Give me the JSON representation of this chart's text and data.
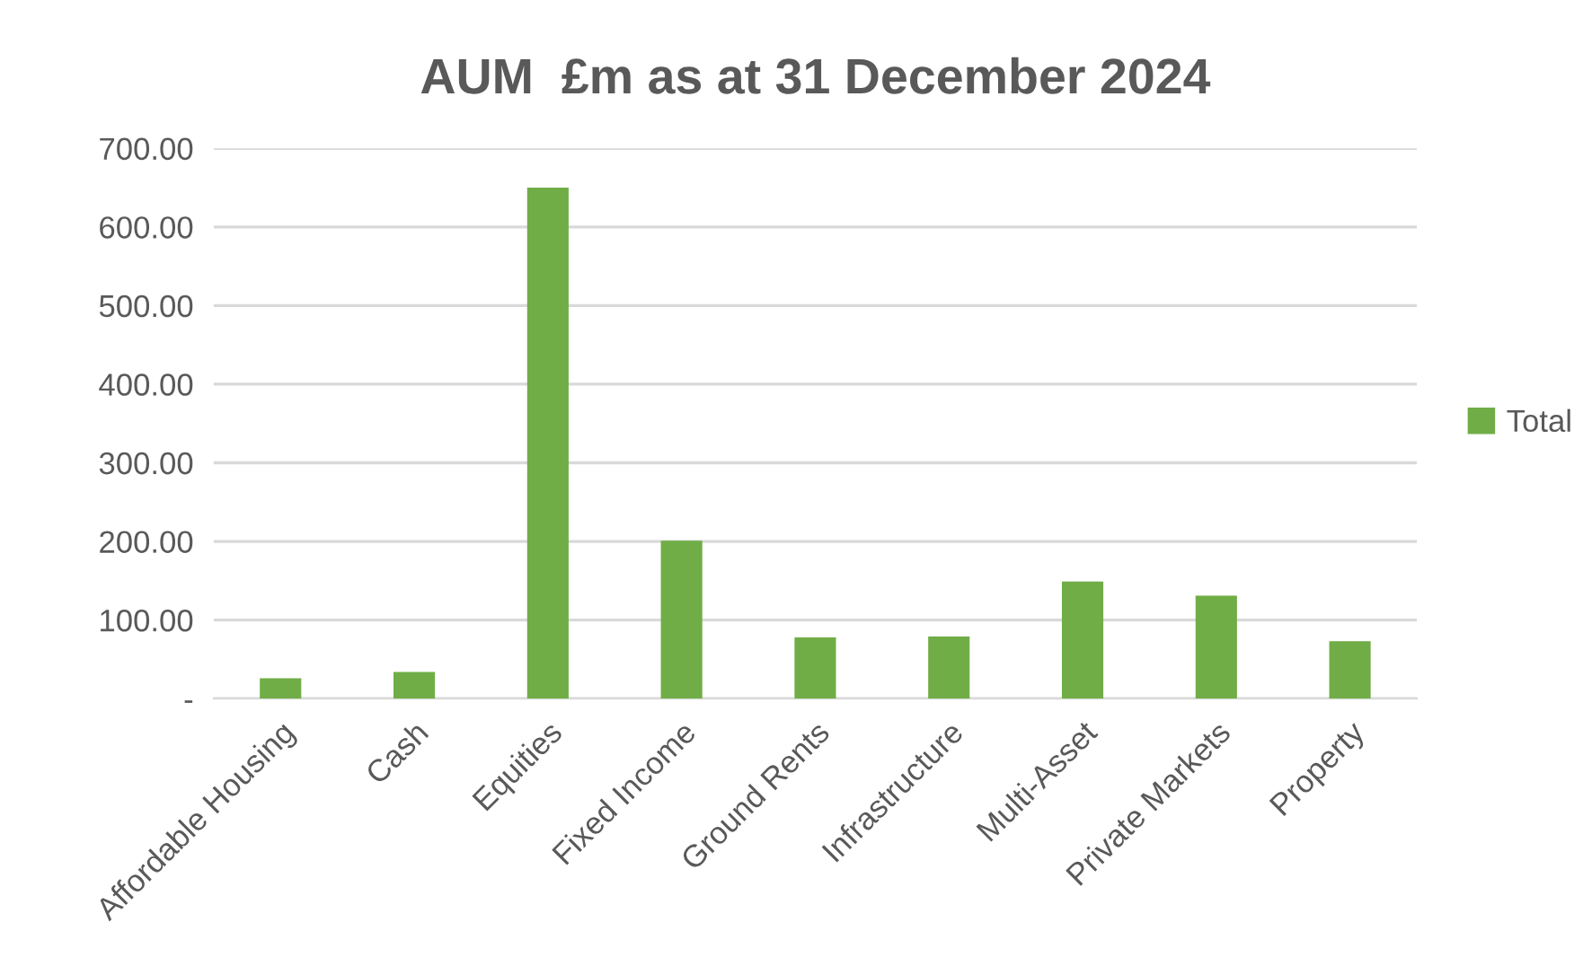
{
  "chart_data": {
    "type": "bar",
    "title": "AUM  £m as at 31 December 2024",
    "categories": [
      "Affordable Housing",
      "Cash",
      "Equities",
      "Fixed Income",
      "Ground Rents",
      "Infrastructure",
      "Multi-Asset",
      "Private Markets",
      "Property"
    ],
    "series": [
      {
        "name": "Total",
        "color": "#70ad47",
        "values": [
          26,
          34,
          650,
          201,
          78,
          79,
          149,
          131,
          73
        ]
      }
    ],
    "ylim": [
      0,
      700
    ],
    "yticks": [
      {
        "value": 0,
        "label": "-"
      },
      {
        "value": 100,
        "label": "100.00"
      },
      {
        "value": 200,
        "label": "200.00"
      },
      {
        "value": 300,
        "label": "300.00"
      },
      {
        "value": 400,
        "label": "400.00"
      },
      {
        "value": 500,
        "label": "500.00"
      },
      {
        "value": 600,
        "label": "600.00"
      },
      {
        "value": 700,
        "label": "700.00"
      }
    ],
    "grid": "y",
    "legend": "right"
  }
}
